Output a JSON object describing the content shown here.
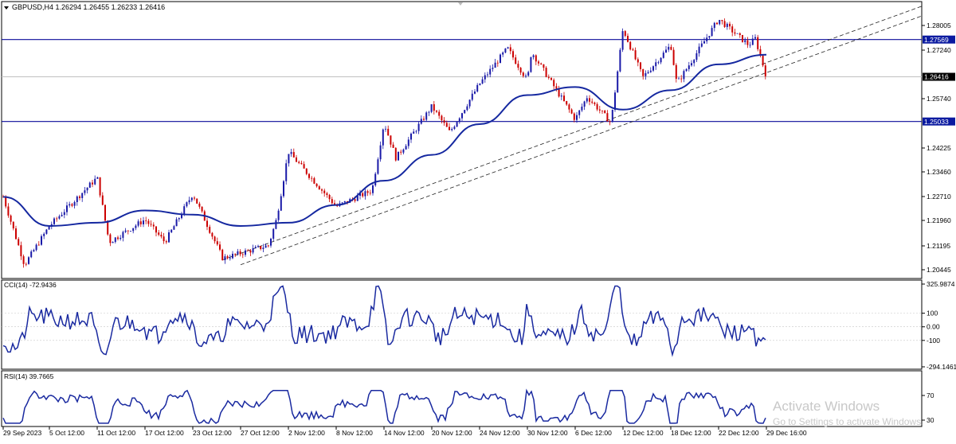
{
  "colors": {
    "background": "#ffffff",
    "frame": "#000000",
    "bull": "#1a1aa8",
    "bear": "#cc0000",
    "ma": "#1528a0",
    "hline": "#0a0a9a",
    "trendline": "#222222",
    "badge_bg": "#0a1aa0",
    "price_badge_bg": "#000000",
    "indicator": "#1a2aa0",
    "watermark": "#c8c8c8"
  },
  "header": {
    "symbol_info": "GBPUSD,H4  1.26294 1.26455 1.26233 1.26416",
    "dropdown_icon": "triangle-down-icon"
  },
  "chart_data": [
    {
      "type": "candlestick",
      "name": "main",
      "title": "GBPUSD,H4",
      "ohlc_last": {
        "open": 1.26294,
        "high": 1.26455,
        "low": 1.26233,
        "close": 1.26416
      },
      "ylim": [
        1.2005,
        1.287
      ],
      "y_ticks": [
        "1.28005",
        "1.27240",
        "1.25740",
        "1.24225",
        "1.23460",
        "1.22710",
        "1.21960",
        "1.21195",
        "1.20445"
      ],
      "key_points": [
        {
          "x": "29 Sep 2023",
          "y": 1.227
        },
        {
          "x": "2 Oct 2023",
          "y": 1.206
        },
        {
          "x": "5 Oct 12:00",
          "y": 1.218
        },
        {
          "x": "11 Oct 12:00",
          "y": 1.233
        },
        {
          "x": "13 Oct 2023",
          "y": 1.213
        },
        {
          "x": "17 Oct 12:00",
          "y": 1.22
        },
        {
          "x": "20 Oct 2023",
          "y": 1.213
        },
        {
          "x": "23 Oct 12:00",
          "y": 1.228
        },
        {
          "x": "26 Oct 2023",
          "y": 1.208
        },
        {
          "x": "31 Oct 2023",
          "y": 1.212
        },
        {
          "x": "1 Nov 2023",
          "y": 1.22
        },
        {
          "x": "2 Nov 12:00",
          "y": 1.241
        },
        {
          "x": "8 Nov 12:00",
          "y": 1.224
        },
        {
          "x": "13 Nov 2023",
          "y": 1.229
        },
        {
          "x": "14 Nov 12:00",
          "y": 1.25
        },
        {
          "x": "16 Nov 2023",
          "y": 1.239
        },
        {
          "x": "20 Nov 12:00",
          "y": 1.255
        },
        {
          "x": "22 Nov 2023",
          "y": 1.247
        },
        {
          "x": "24 Nov 12:00",
          "y": 1.262
        },
        {
          "x": "28 Nov 2023",
          "y": 1.273
        },
        {
          "x": "30 Nov 12:00",
          "y": 1.263
        },
        {
          "x": "1 Dec 2023",
          "y": 1.272
        },
        {
          "x": "6 Dec 12:00",
          "y": 1.251
        },
        {
          "x": "8 Dec 2023",
          "y": 1.258
        },
        {
          "x": "11 Dec 2023",
          "y": 1.25
        },
        {
          "x": "12 Dec 12:00",
          "y": 1.279
        },
        {
          "x": "15 Dec 2023",
          "y": 1.264
        },
        {
          "x": "18 Dec 12:00",
          "y": 1.274
        },
        {
          "x": "19 Dec 2023",
          "y": 1.262
        },
        {
          "x": "22 Dec 12:00",
          "y": 1.282
        },
        {
          "x": "27 Dec 2023",
          "y": 1.274
        },
        {
          "x": "28 Dec 2023",
          "y": 1.276
        },
        {
          "x": "29 Dec 16:00",
          "y": 1.2642
        }
      ],
      "moving_average_key_points": [
        {
          "x": "29 Sep 2023",
          "y": 1.227
        },
        {
          "x": "5 Oct 12:00",
          "y": 1.218
        },
        {
          "x": "11 Oct 12:00",
          "y": 1.219
        },
        {
          "x": "17 Oct 12:00",
          "y": 1.2228
        },
        {
          "x": "23 Oct 12:00",
          "y": 1.2215
        },
        {
          "x": "27 Oct 12:00",
          "y": 1.218
        },
        {
          "x": "2 Nov 12:00",
          "y": 1.219
        },
        {
          "x": "8 Nov 12:00",
          "y": 1.2245
        },
        {
          "x": "14 Nov 12:00",
          "y": 1.232
        },
        {
          "x": "20 Nov 12:00",
          "y": 1.24
        },
        {
          "x": "24 Nov 12:00",
          "y": 1.2495
        },
        {
          "x": "30 Nov 12:00",
          "y": 1.2585
        },
        {
          "x": "6 Dec 12:00",
          "y": 1.261
        },
        {
          "x": "12 Dec 12:00",
          "y": 1.254
        },
        {
          "x": "18 Dec 12:00",
          "y": 1.26
        },
        {
          "x": "22 Dec 12:00",
          "y": 1.268
        },
        {
          "x": "29 Dec 16:00",
          "y": 1.271
        }
      ],
      "horizontal_levels": [
        {
          "label": "1.27569",
          "value": 1.27569
        },
        {
          "label": "1.25033",
          "value": 1.25033
        }
      ],
      "current_price_label": "1.26416",
      "current_price": 1.26416,
      "trendlines": [
        {
          "from": {
            "x": "26 Oct 2023",
            "y": 1.2075
          },
          "to": {
            "x": "29 Dec 16:00",
            "y": 1.286
          }
        },
        {
          "from": {
            "x": "27 Oct 12:00",
            "y": 1.206
          },
          "to": {
            "x": "29 Dec 16:00",
            "y": 1.283
          }
        }
      ]
    },
    {
      "type": "line",
      "name": "cci",
      "title": "CCI(14) -72.9436",
      "ylim": [
        -294.1461,
        325.9874
      ],
      "y_ticks": [
        "325.9874",
        "100",
        "0.00",
        "-100",
        "-294.1461"
      ],
      "last_value": -72.9436
    },
    {
      "type": "line",
      "name": "rsi",
      "title": "RSI(14) 39.7665",
      "ylim": [
        18,
        82
      ],
      "y_ticks": [
        "70",
        "30"
      ],
      "last_value": 39.7665
    }
  ],
  "x_axis": {
    "labels": [
      "29 Sep 2023",
      "5 Oct 12:00",
      "11 Oct 12:00",
      "17 Oct 12:00",
      "23 Oct 12:00",
      "27 Oct 12:00",
      "2 Nov 12:00",
      "8 Nov 12:00",
      "14 Nov 12:00",
      "20 Nov 12:00",
      "24 Nov 12:00",
      "30 Nov 12:00",
      "6 Dec 12:00",
      "12 Dec 12:00",
      "18 Dec 12:00",
      "22 Dec 12:00",
      "29 Dec 16:00"
    ]
  },
  "watermark": {
    "title": "Activate Windows",
    "subtitle": "Go to Settings to activate Windows."
  }
}
